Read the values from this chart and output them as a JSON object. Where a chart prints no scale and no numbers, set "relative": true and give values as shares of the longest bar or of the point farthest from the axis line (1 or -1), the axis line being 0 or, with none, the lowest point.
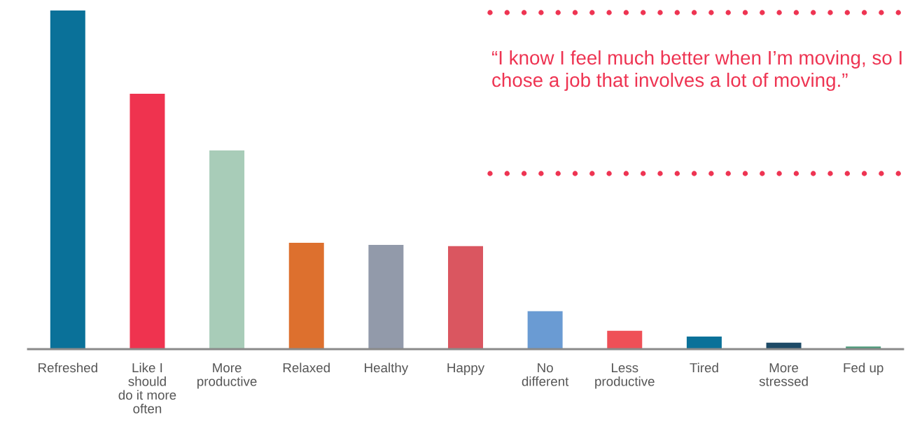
{
  "chart_data": {
    "type": "bar",
    "relative": true,
    "categories": [
      "Refreshed",
      "Like I\nshould\ndo it more\noften",
      "More\nproductive",
      "Relaxed",
      "Healthy",
      "Happy",
      "No\ndifferent",
      "Less\nproductive",
      "Tired",
      "More\nstressed",
      "Fed up"
    ],
    "values": [
      1,
      0.754,
      0.587,
      0.314,
      0.308,
      0.304,
      0.112,
      0.054,
      0.037,
      0.019,
      0.008
    ],
    "colors": [
      "#0a7199",
      "#ef334f",
      "#a8ccb8",
      "#dd702e",
      "#929aaa",
      "#da5660",
      "#6a9bd3",
      "#ef5057",
      "#0a7199",
      "#1d4a66",
      "#4d9a7a"
    ],
    "annotations": [
      "“I know I feel much better when I’m moving, so I chose a job that involves a lot of moving.”"
    ],
    "grid": false,
    "legend": false
  }
}
